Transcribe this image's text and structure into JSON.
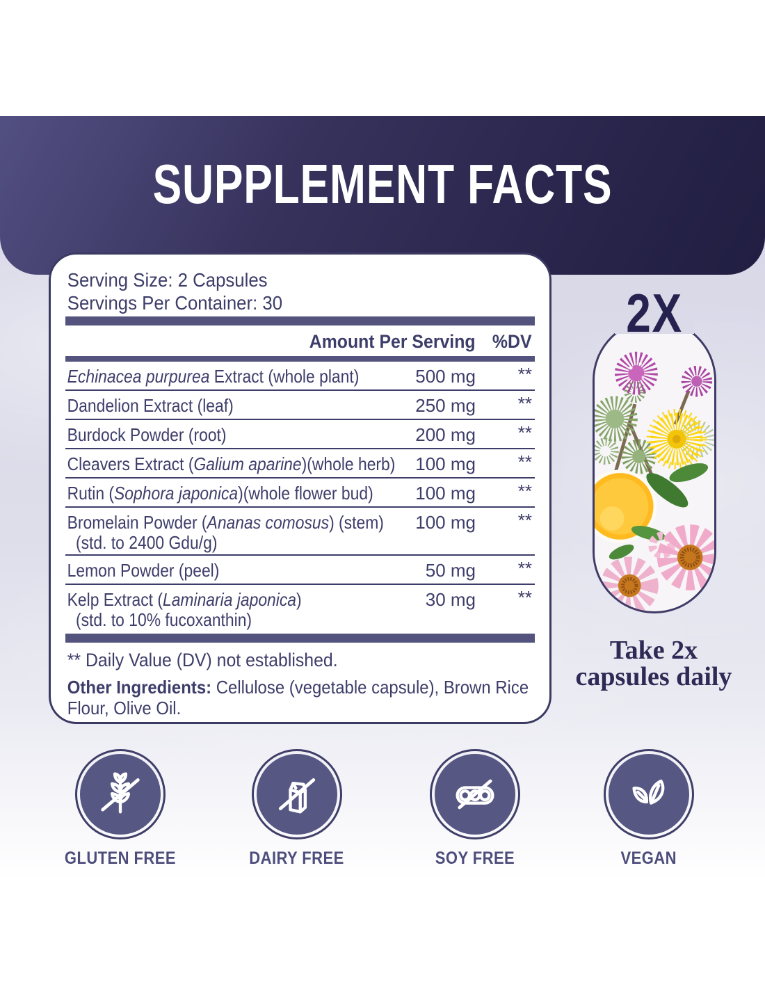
{
  "colors": {
    "banner_navy": "#272349",
    "panel_text_navy": "#3d3d6a",
    "divider_slate": "#53537e",
    "badge_disc_slate": "#575784",
    "background_lavender": "#dadae9"
  },
  "header": {
    "title": "SUPPLEMENT FACTS"
  },
  "facts": {
    "serving_size": "Serving Size: 2 Capsules",
    "servings_per_container": "Servings Per Container: 30",
    "columns": {
      "amount": "Amount Per Serving",
      "dv": "%DV"
    },
    "rows": [
      {
        "name": [
          {
            "t": "Echinacea purpurea",
            "i": true
          },
          {
            "t": " Extract (whole plant)"
          }
        ],
        "amount": "500 mg",
        "dv": "**"
      },
      {
        "name": [
          {
            "t": "Dandelion Extract (leaf)"
          }
        ],
        "amount": "250 mg",
        "dv": "**"
      },
      {
        "name": [
          {
            "t": "Burdock Powder (root)"
          }
        ],
        "amount": "200 mg",
        "dv": "**"
      },
      {
        "name": [
          {
            "t": "Cleavers Extract ("
          },
          {
            "t": "Galium aparine",
            "i": true
          },
          {
            "t": ")(whole herb)"
          }
        ],
        "amount": "100 mg",
        "dv": "**"
      },
      {
        "name": [
          {
            "t": "Rutin ("
          },
          {
            "t": "Sophora japonica",
            "i": true
          },
          {
            "t": ")(whole flower bud)"
          }
        ],
        "amount": "100 mg",
        "dv": "**"
      },
      {
        "name": [
          {
            "t": "Bromelain Powder ("
          },
          {
            "t": "Ananas comosus",
            "i": true
          },
          {
            "t": ") (stem)"
          }
        ],
        "sub": "(std. to 2400 Gdu/g)",
        "amount": "100 mg",
        "dv": "**"
      },
      {
        "name": [
          {
            "t": "Lemon Powder (peel)"
          }
        ],
        "amount": "50 mg",
        "dv": "**"
      },
      {
        "name": [
          {
            "t": "Kelp Extract ("
          },
          {
            "t": "Laminaria japonica",
            "i": true
          },
          {
            "t": ")"
          }
        ],
        "sub": "(std. to 10% fucoxanthin)",
        "amount": "30 mg",
        "dv": "**"
      }
    ],
    "footnote": "** Daily Value (DV) not established.",
    "other_ingredients": {
      "label": "Other Ingredients:",
      "text": " Cellulose (vegetable capsule), Brown Rice Flour, Olive Oil."
    }
  },
  "capsule": {
    "multiplier": "2X",
    "caption": "Take 2x capsules daily"
  },
  "badges": [
    {
      "label": "GLUTEN FREE",
      "icon": "wheat-slash-icon"
    },
    {
      "label": "DAIRY FREE",
      "icon": "milk-carton-slash-icon"
    },
    {
      "label": "SOY FREE",
      "icon": "soy-pod-slash-icon"
    },
    {
      "label": "VEGAN",
      "icon": "leaves-icon"
    }
  ]
}
